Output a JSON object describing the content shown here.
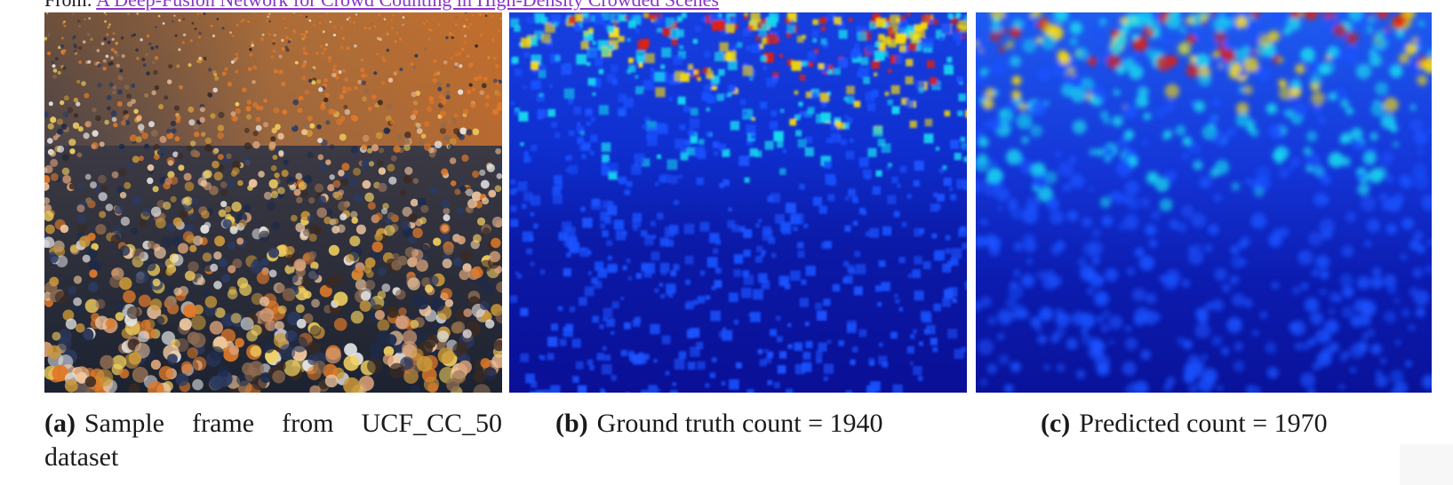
{
  "source": {
    "prefix": "From:",
    "link_text": "A Deep-Fusion Network for Crowd Counting in High-Density Crowded Scenes",
    "link_color": "#8a35c9"
  },
  "figure": {
    "panels": [
      {
        "id": "a",
        "tag": "(a)",
        "caption": "Sample frame from UCF_CC_50 dataset",
        "content": "crowd photograph"
      },
      {
        "id": "b",
        "tag": "(b)",
        "caption": "Ground truth count = 1940",
        "content": "ground-truth density heatmap"
      },
      {
        "id": "c",
        "tag": "(c)",
        "caption": "Predicted count = 1970",
        "content": "predicted density heatmap"
      }
    ],
    "heatmap_colors": {
      "low": "#0b0f9c",
      "mid_low": "#1a52ff",
      "mid": "#17d8f0",
      "mid_high": "#ffe000",
      "high": "#e0200a"
    }
  }
}
